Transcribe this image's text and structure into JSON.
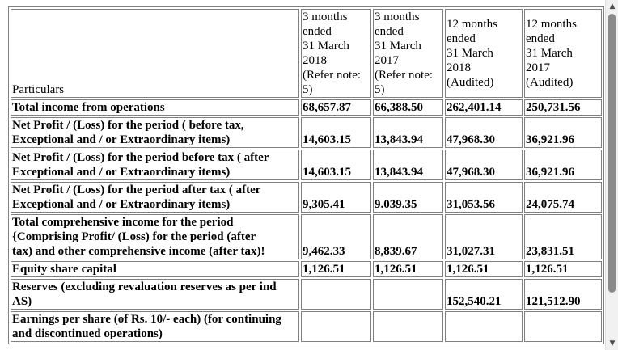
{
  "header": {
    "particulars": "Particulars",
    "col1": [
      "3 months",
      "ended",
      "31 March",
      "2018",
      "(Refer note:",
      "5)"
    ],
    "col2": [
      "3 months",
      "ended",
      "31 March",
      "2017",
      "(Refer note:",
      "5)"
    ],
    "col3": [
      "12 months",
      "ended",
      "31 March",
      "2018",
      "(Audited)"
    ],
    "col4": [
      "12 months",
      "ended",
      "31 March",
      "2017",
      "(Audited)"
    ]
  },
  "rows": [
    {
      "label": [
        "Total income from operations"
      ],
      "values": [
        "68,657.87",
        "66,388.50",
        "262,401.14",
        "250,731.56"
      ]
    },
    {
      "label": [
        "Net Profit / (Loss) for the period ( before tax,",
        "Exceptional and / or Extraordinary items)"
      ],
      "values": [
        "14,603.15",
        "13,843.94",
        "47,968.30",
        "36,921.96"
      ]
    },
    {
      "label": [
        "Net Profit / (Loss) for the period before tax ( after",
        "Exceptional and / or Extraordinary items)"
      ],
      "values": [
        "14,603.15",
        "13,843.94",
        "47,968.30",
        "36,921.96"
      ]
    },
    {
      "label": [
        "Net Profit / (Loss) for the period after tax ( after",
        "Exceptional and / or Extraordinary items)"
      ],
      "values": [
        "9,305.41",
        "9.039.35",
        "31,053.56",
        "24,075.74"
      ]
    },
    {
      "label": [
        "Total comprehensive income for the period",
        "{Comprising Profit/ (Loss) for the period (after",
        "tax) and other comprehensive income (after tax)!"
      ],
      "values": [
        "9,462.33",
        "8,839.67",
        "31,027.31",
        "23,831.51"
      ]
    },
    {
      "label": [
        "Equity share capital"
      ],
      "values": [
        "1,126.51",
        "1,126.51",
        "1,126.51",
        "1,126.51"
      ]
    },
    {
      "label": [
        "Reserves (excluding revaluation reserves as per ind",
        "AS)"
      ],
      "values": [
        "",
        "",
        "152,540.21",
        "121,512.90"
      ]
    },
    {
      "label": [
        "Earnings per share (of Rs. 10/- each) (for continuing",
        "and discontinued operations)"
      ],
      "values": [
        "",
        "",
        "",
        ""
      ]
    }
  ],
  "scrollbar": {
    "up_icon": "triangle-up",
    "down_icon": "triangle-down"
  }
}
